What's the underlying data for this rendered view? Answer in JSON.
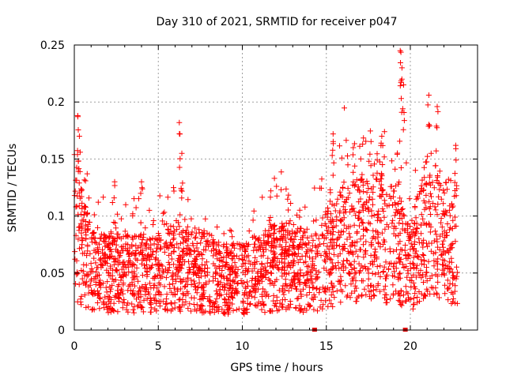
{
  "chart_data": {
    "type": "scatter",
    "title": "Day 310 of 2021, SRMTID for receiver p047",
    "xlabel": "GPS time / hours",
    "ylabel": "SRMTID / TECUs",
    "xlim": [
      0,
      24
    ],
    "ylim": [
      0,
      0.25
    ],
    "x_ticks": [
      0,
      5,
      10,
      15,
      20
    ],
    "x_tick_labels": [
      "0",
      "5",
      "10",
      "15",
      "20"
    ],
    "y_ticks": [
      0,
      0.05,
      0.1,
      0.15,
      0.2,
      0.25
    ],
    "y_tick_labels": [
      "0",
      "0.05",
      "0.1",
      "0.15",
      "0.2",
      "0.25"
    ],
    "grid": true,
    "marker": "+",
    "color": "#ff0000",
    "zero_markers_x": [
      14.3,
      19.7
    ],
    "series_profile": {
      "name": "SRMTID",
      "points_per_hour": 110,
      "x_range": [
        0,
        22.8
      ],
      "baseline": [
        [
          0,
          0.09
        ],
        [
          0.5,
          0.07
        ],
        [
          1,
          0.055
        ],
        [
          2,
          0.05
        ],
        [
          3,
          0.05
        ],
        [
          4,
          0.05
        ],
        [
          5,
          0.05
        ],
        [
          6,
          0.055
        ],
        [
          7,
          0.05
        ],
        [
          8,
          0.05
        ],
        [
          9,
          0.045
        ],
        [
          10,
          0.045
        ],
        [
          11,
          0.05
        ],
        [
          12,
          0.055
        ],
        [
          13,
          0.055
        ],
        [
          14,
          0.05
        ],
        [
          15,
          0.06
        ],
        [
          16,
          0.075
        ],
        [
          17,
          0.08
        ],
        [
          18,
          0.085
        ],
        [
          19,
          0.075
        ],
        [
          20,
          0.055
        ],
        [
          21,
          0.09
        ],
        [
          22,
          0.08
        ],
        [
          22.8,
          0.075
        ]
      ],
      "spikes": [
        [
          0.2,
          0.188
        ],
        [
          0.3,
          0.17
        ],
        [
          2.4,
          0.13
        ],
        [
          4.0,
          0.13
        ],
        [
          6.25,
          0.182
        ],
        [
          6.4,
          0.155
        ],
        [
          11.7,
          0.122
        ],
        [
          15.4,
          0.172
        ],
        [
          16.6,
          0.16
        ],
        [
          18.3,
          0.17
        ],
        [
          19.4,
          0.245
        ],
        [
          19.5,
          0.23
        ],
        [
          19.6,
          0.215
        ],
        [
          21.1,
          0.206
        ],
        [
          21.6,
          0.196
        ],
        [
          22.7,
          0.162
        ]
      ]
    }
  }
}
